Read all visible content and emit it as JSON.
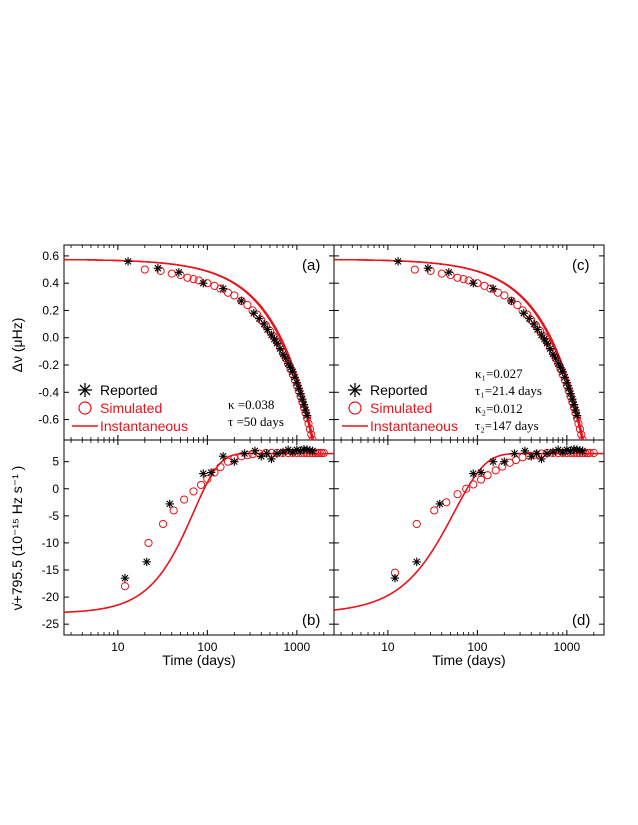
{
  "colors": {
    "reported": "#000000",
    "simulated": "#e8141b",
    "instantaneous": "#e8141b"
  },
  "icons": {
    "reported": "asterisk-marker-icon",
    "simulated": "open-circle-marker-icon",
    "instantaneous": "line-icon"
  },
  "axes": {
    "xlabel": "Time (days)",
    "top_ylabel": "Δν (μHz)",
    "bottom_ylabel": "ν̇+795.5 (10⁻¹⁵ Hz s⁻¹ )",
    "x_scale": "log",
    "xlim": [
      2.5,
      2600
    ],
    "top_ylim": [
      -0.75,
      0.68
    ],
    "bottom_ylim": [
      -27,
      9
    ],
    "x_ticks": [
      {
        "v": 10,
        "label": "10"
      },
      {
        "v": 100,
        "label": "100"
      },
      {
        "v": 1000,
        "label": "1000"
      }
    ],
    "top_yticks": [
      {
        "v": 0.6,
        "label": "0.6"
      },
      {
        "v": 0.4,
        "label": "0.4"
      },
      {
        "v": 0.2,
        "label": "0.2"
      },
      {
        "v": 0.0,
        "label": "0.0"
      },
      {
        "v": -0.2,
        "label": "-0.2"
      },
      {
        "v": -0.4,
        "label": "-0.4"
      },
      {
        "v": -0.6,
        "label": "-0.6"
      }
    ],
    "bottom_yticks": [
      {
        "v": 5,
        "label": "5"
      },
      {
        "v": 0,
        "label": "0"
      },
      {
        "v": -5,
        "label": "-5"
      },
      {
        "v": -10,
        "label": "-10"
      },
      {
        "v": -15,
        "label": "-15"
      },
      {
        "v": -20,
        "label": "-20"
      },
      {
        "v": -25,
        "label": "-25"
      }
    ]
  },
  "legend": {
    "reported": "Reported",
    "simulated": "Simulated",
    "instantaneous": "Instantaneous"
  },
  "annotations": {
    "a": {
      "kappa": "κ =0.038",
      "tau": "τ =50 days"
    },
    "c": {
      "kappa1": "κ₁=0.027",
      "tau1": "τ₁=21.4 days",
      "kappa2": "κ₂=0.012",
      "tau2": "τ₂=147 days"
    }
  },
  "chart_data": [
    {
      "id": "a",
      "label": "(a)",
      "type": "scatter",
      "xlabel": "",
      "ylabel": "Δν (μHz)",
      "reported": [
        [
          13,
          0.56
        ],
        [
          28,
          0.51
        ],
        [
          48,
          0.48
        ],
        [
          90,
          0.4
        ],
        [
          150,
          0.36
        ],
        [
          240,
          0.27
        ],
        [
          330,
          0.18
        ],
        [
          380,
          0.14
        ],
        [
          430,
          0.1
        ],
        [
          470,
          0.06
        ],
        [
          520,
          0.02
        ],
        [
          560,
          -0.01
        ],
        [
          600,
          -0.04
        ],
        [
          650,
          -0.08
        ],
        [
          700,
          -0.12
        ],
        [
          750,
          -0.15
        ],
        [
          800,
          -0.19
        ],
        [
          850,
          -0.22
        ],
        [
          900,
          -0.25
        ],
        [
          950,
          -0.29
        ],
        [
          1000,
          -0.33
        ],
        [
          1050,
          -0.37
        ],
        [
          1100,
          -0.41
        ],
        [
          1150,
          -0.45
        ],
        [
          1200,
          -0.49
        ],
        [
          1250,
          -0.53
        ],
        [
          1300,
          -0.57
        ]
      ],
      "simulated": [
        [
          20,
          0.5
        ],
        [
          30,
          0.49
        ],
        [
          40,
          0.47
        ],
        [
          50,
          0.46
        ],
        [
          60,
          0.44
        ],
        [
          70,
          0.43
        ],
        [
          80,
          0.42
        ],
        [
          100,
          0.4
        ],
        [
          120,
          0.38
        ],
        [
          140,
          0.36
        ],
        [
          170,
          0.33
        ],
        [
          200,
          0.31
        ],
        [
          240,
          0.27
        ],
        [
          280,
          0.24
        ],
        [
          320,
          0.2
        ],
        [
          360,
          0.17
        ],
        [
          400,
          0.13
        ],
        [
          450,
          0.09
        ],
        [
          500,
          0.05
        ],
        [
          550,
          0.01
        ],
        [
          600,
          -0.03
        ],
        [
          650,
          -0.07
        ],
        [
          700,
          -0.11
        ],
        [
          750,
          -0.15
        ],
        [
          800,
          -0.19
        ],
        [
          850,
          -0.23
        ],
        [
          900,
          -0.27
        ],
        [
          950,
          -0.31
        ],
        [
          1000,
          -0.35
        ],
        [
          1050,
          -0.39
        ],
        [
          1100,
          -0.43
        ],
        [
          1150,
          -0.47
        ],
        [
          1200,
          -0.51
        ],
        [
          1250,
          -0.55
        ],
        [
          1300,
          -0.59
        ],
        [
          1350,
          -0.63
        ],
        [
          1400,
          -0.67
        ],
        [
          1450,
          -0.71
        ],
        [
          1500,
          -0.75
        ]
      ],
      "instantaneous_curve": {
        "v0": 0.575,
        "slope": 0.00088,
        "lines": 3,
        "line_offsets": [
          0,
          -0.015,
          0.015
        ]
      }
    },
    {
      "id": "b",
      "label": "(b)",
      "type": "scatter",
      "xlabel": "Time (days)",
      "ylabel": "ν̇+795.5",
      "reported": [
        [
          12,
          -16.5
        ],
        [
          21,
          -13.5
        ],
        [
          38,
          -2.8
        ],
        [
          90,
          2.8
        ],
        [
          110,
          3
        ],
        [
          150,
          6
        ],
        [
          200,
          5
        ],
        [
          260,
          6.5
        ],
        [
          340,
          7
        ],
        [
          400,
          6
        ],
        [
          460,
          6.5
        ],
        [
          520,
          5.5
        ],
        [
          600,
          6.5
        ],
        [
          700,
          6.8
        ],
        [
          800,
          7.2
        ],
        [
          900,
          6.8
        ],
        [
          1000,
          7.2
        ],
        [
          1100,
          7
        ],
        [
          1200,
          7.3
        ],
        [
          1300,
          7.2
        ],
        [
          1400,
          7.1
        ],
        [
          1500,
          7
        ]
      ],
      "simulated": [
        [
          12,
          -18
        ],
        [
          22,
          -10
        ],
        [
          32,
          -6.5
        ],
        [
          42,
          -4
        ],
        [
          55,
          -2
        ],
        [
          70,
          -0.5
        ],
        [
          85,
          0.7
        ],
        [
          100,
          1.8
        ],
        [
          120,
          3
        ],
        [
          140,
          4
        ],
        [
          170,
          5
        ],
        [
          200,
          5.6
        ],
        [
          240,
          6
        ],
        [
          280,
          6.2
        ],
        [
          320,
          6.4
        ],
        [
          380,
          6.5
        ],
        [
          450,
          6.6
        ],
        [
          520,
          6.6
        ],
        [
          600,
          6.6
        ],
        [
          700,
          6.6
        ],
        [
          800,
          6.6
        ],
        [
          900,
          6.6
        ],
        [
          1000,
          6.6
        ],
        [
          1100,
          6.6
        ],
        [
          1200,
          6.6
        ],
        [
          1300,
          6.6
        ],
        [
          1400,
          6.6
        ],
        [
          1500,
          6.6
        ],
        [
          1600,
          6.6
        ],
        [
          1700,
          6.6
        ],
        [
          1800,
          6.6
        ],
        [
          1900,
          6.6
        ],
        [
          2000,
          6.6
        ]
      ],
      "instantaneous_curve": {
        "low": -23,
        "high": 6.5,
        "tau": 70,
        "power": 1.5
      }
    },
    {
      "id": "c",
      "label": "(c)",
      "type": "scatter",
      "xlabel": "",
      "ylabel": "",
      "reported": [
        [
          13,
          0.56
        ],
        [
          28,
          0.51
        ],
        [
          48,
          0.48
        ],
        [
          90,
          0.4
        ],
        [
          150,
          0.36
        ],
        [
          240,
          0.27
        ],
        [
          330,
          0.18
        ],
        [
          380,
          0.14
        ],
        [
          430,
          0.1
        ],
        [
          470,
          0.06
        ],
        [
          520,
          0.02
        ],
        [
          560,
          -0.01
        ],
        [
          600,
          -0.04
        ],
        [
          650,
          -0.08
        ],
        [
          700,
          -0.12
        ],
        [
          750,
          -0.15
        ],
        [
          800,
          -0.19
        ],
        [
          850,
          -0.22
        ],
        [
          900,
          -0.25
        ],
        [
          950,
          -0.29
        ],
        [
          1000,
          -0.33
        ],
        [
          1050,
          -0.37
        ],
        [
          1100,
          -0.41
        ],
        [
          1150,
          -0.45
        ],
        [
          1200,
          -0.49
        ],
        [
          1250,
          -0.53
        ],
        [
          1300,
          -0.57
        ]
      ],
      "simulated": [
        [
          20,
          0.5
        ],
        [
          30,
          0.49
        ],
        [
          40,
          0.47
        ],
        [
          50,
          0.46
        ],
        [
          60,
          0.44
        ],
        [
          70,
          0.43
        ],
        [
          80,
          0.42
        ],
        [
          100,
          0.4
        ],
        [
          120,
          0.38
        ],
        [
          140,
          0.36
        ],
        [
          170,
          0.33
        ],
        [
          200,
          0.31
        ],
        [
          240,
          0.27
        ],
        [
          280,
          0.24
        ],
        [
          320,
          0.2
        ],
        [
          360,
          0.17
        ],
        [
          400,
          0.13
        ],
        [
          450,
          0.09
        ],
        [
          500,
          0.05
        ],
        [
          550,
          0.01
        ],
        [
          600,
          -0.03
        ],
        [
          650,
          -0.07
        ],
        [
          700,
          -0.11
        ],
        [
          750,
          -0.15
        ],
        [
          800,
          -0.19
        ],
        [
          850,
          -0.23
        ],
        [
          900,
          -0.27
        ],
        [
          950,
          -0.31
        ],
        [
          1000,
          -0.35
        ],
        [
          1050,
          -0.39
        ],
        [
          1100,
          -0.43
        ],
        [
          1150,
          -0.47
        ],
        [
          1200,
          -0.51
        ],
        [
          1250,
          -0.55
        ],
        [
          1300,
          -0.59
        ],
        [
          1350,
          -0.63
        ],
        [
          1400,
          -0.67
        ],
        [
          1450,
          -0.71
        ],
        [
          1500,
          -0.75
        ]
      ],
      "instantaneous_curve": {
        "v0": 0.575,
        "slope": 0.00088,
        "lines": 3,
        "line_offsets": [
          0,
          -0.015,
          0.015
        ]
      }
    },
    {
      "id": "d",
      "label": "(d)",
      "type": "scatter",
      "xlabel": "Time (days)",
      "ylabel": "",
      "reported": [
        [
          12,
          -16.5
        ],
        [
          21,
          -13.5
        ],
        [
          38,
          -2.8
        ],
        [
          90,
          2.8
        ],
        [
          110,
          3
        ],
        [
          150,
          5
        ],
        [
          200,
          5
        ],
        [
          260,
          6.5
        ],
        [
          340,
          7
        ],
        [
          400,
          6
        ],
        [
          460,
          6.5
        ],
        [
          520,
          5.5
        ],
        [
          600,
          6.5
        ],
        [
          700,
          6.8
        ],
        [
          800,
          7.2
        ],
        [
          900,
          6.8
        ],
        [
          1000,
          7.2
        ],
        [
          1100,
          7
        ],
        [
          1200,
          7.3
        ],
        [
          1300,
          7.2
        ],
        [
          1400,
          7.1
        ],
        [
          1500,
          7
        ]
      ],
      "simulated": [
        [
          12,
          -15.5
        ],
        [
          21,
          -6.5
        ],
        [
          33,
          -4
        ],
        [
          45,
          -2.5
        ],
        [
          60,
          -1
        ],
        [
          75,
          0
        ],
        [
          90,
          0.8
        ],
        [
          110,
          1.7
        ],
        [
          130,
          2.5
        ],
        [
          160,
          3.4
        ],
        [
          190,
          4.1
        ],
        [
          230,
          4.8
        ],
        [
          270,
          5.3
        ],
        [
          320,
          5.8
        ],
        [
          380,
          6.1
        ],
        [
          450,
          6.3
        ],
        [
          520,
          6.5
        ],
        [
          600,
          6.6
        ],
        [
          700,
          6.6
        ],
        [
          800,
          6.6
        ],
        [
          900,
          6.6
        ],
        [
          1000,
          6.6
        ],
        [
          1100,
          6.6
        ],
        [
          1200,
          6.6
        ],
        [
          1300,
          6.6
        ],
        [
          1400,
          6.6
        ],
        [
          1500,
          6.6
        ],
        [
          1600,
          6.6
        ],
        [
          1700,
          6.6
        ],
        [
          1800,
          6.6
        ],
        [
          2000,
          6.6
        ]
      ],
      "instantaneous_curve": {
        "low": -23,
        "high": 6.5,
        "tau": 55,
        "power": 1.25
      }
    }
  ]
}
